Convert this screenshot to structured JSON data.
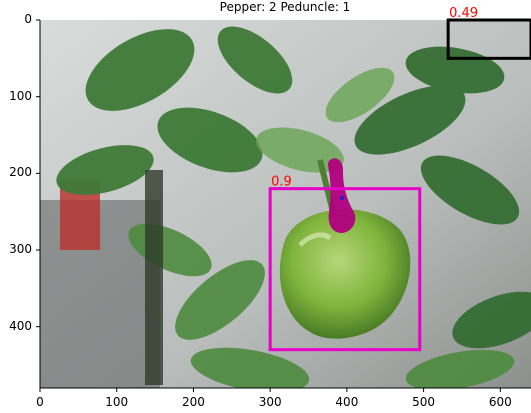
{
  "title": "Pepper: 2 Peduncle: 1",
  "image_axes": {
    "x_range": [
      0,
      640
    ],
    "y_range": [
      480,
      0
    ],
    "x_ticks": [
      {
        "value": 0,
        "label": "0"
      },
      {
        "value": 100,
        "label": "100"
      },
      {
        "value": 200,
        "label": "200"
      },
      {
        "value": 300,
        "label": "300"
      },
      {
        "value": 400,
        "label": "400"
      },
      {
        "value": 500,
        "label": "500"
      },
      {
        "value": 600,
        "label": "600"
      }
    ],
    "y_ticks": [
      {
        "value": 0,
        "label": "0"
      },
      {
        "value": 100,
        "label": "100"
      },
      {
        "value": 200,
        "label": "200"
      },
      {
        "value": 300,
        "label": "300"
      },
      {
        "value": 400,
        "label": "400"
      }
    ]
  },
  "detections": [
    {
      "score_label": "0.9",
      "color": "#e600c8",
      "box_x": [
        300,
        495
      ],
      "box_y": [
        220,
        430
      ]
    },
    {
      "score_label": "0.49",
      "color": "#000000",
      "box_x": [
        532,
        640
      ],
      "box_y": [
        0,
        50
      ]
    }
  ],
  "colors": {
    "score_text": "#ff0000",
    "peduncle_mask": "#b0007e",
    "peduncle_point": "#2020c8",
    "pepper_green": "#7fb43c",
    "leaf_green": "#3f7a3a",
    "background_gray": "#c9cccb"
  }
}
